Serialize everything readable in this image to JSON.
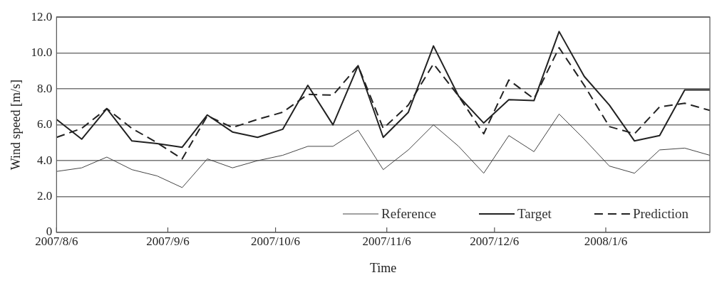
{
  "chart_data": {
    "type": "line",
    "xlabel": "Time",
    "ylabel": "Wind speed [m/s]",
    "x": [
      "2007-08-06",
      "2007-08-13",
      "2007-08-20",
      "2007-08-27",
      "2007-09-03",
      "2007-09-10",
      "2007-09-17",
      "2007-09-24",
      "2007-10-01",
      "2007-10-08",
      "2007-10-15",
      "2007-10-22",
      "2007-10-29",
      "2007-11-05",
      "2007-11-12",
      "2007-11-19",
      "2007-11-26",
      "2007-12-03",
      "2007-12-10",
      "2007-12-17",
      "2007-12-24",
      "2007-12-31",
      "2008-01-07",
      "2008-01-14",
      "2008-01-21",
      "2008-01-28",
      "2008-02-04"
    ],
    "series": [
      {
        "name": "Reference",
        "color": "#444444",
        "line_style": "solid",
        "values": [
          3.4,
          3.6,
          4.2,
          3.5,
          3.15,
          2.5,
          4.1,
          3.6,
          4.0,
          4.3,
          4.8,
          4.8,
          5.7,
          3.5,
          4.6,
          6.0,
          4.8,
          3.3,
          5.4,
          4.5,
          6.6,
          5.2,
          3.7,
          3.3,
          4.6,
          4.7,
          4.3
        ]
      },
      {
        "name": "Target",
        "color": "#222222",
        "line_style": "solid",
        "values": [
          6.3,
          5.2,
          6.9,
          5.1,
          4.95,
          4.75,
          6.55,
          5.6,
          5.3,
          5.75,
          8.2,
          6.0,
          9.3,
          5.3,
          6.7,
          10.4,
          7.6,
          6.1,
          7.4,
          7.35,
          11.2,
          8.7,
          7.1,
          5.1,
          5.4,
          7.95,
          7.95
        ]
      },
      {
        "name": "Prediction",
        "color": "#222222",
        "line_style": "dashed",
        "values": [
          5.3,
          5.8,
          6.9,
          5.8,
          5.0,
          4.1,
          6.5,
          5.85,
          6.3,
          6.7,
          7.7,
          7.65,
          9.3,
          5.8,
          7.1,
          9.4,
          7.6,
          5.5,
          8.5,
          7.45,
          10.3,
          8.2,
          5.9,
          5.5,
          7.0,
          7.2,
          6.8
        ]
      }
    ],
    "xlim": [
      "2007-08-06",
      "2008-02-04"
    ],
    "xticks": [
      {
        "value": "2007-08-06",
        "label": "2007/8/6"
      },
      {
        "value": "2007-09-06",
        "label": "2007/9/6"
      },
      {
        "value": "2007-10-06",
        "label": "2007/10/6"
      },
      {
        "value": "2007-11-06",
        "label": "2007/11/6"
      },
      {
        "value": "2007-12-06",
        "label": "2007/12/6"
      },
      {
        "value": "2008-01-06",
        "label": "2008/1/6"
      }
    ],
    "ylim": [
      0,
      12
    ],
    "yticks": [
      {
        "value": 0,
        "label": "0"
      },
      {
        "value": 2,
        "label": "2.0"
      },
      {
        "value": 4,
        "label": "4.0"
      },
      {
        "value": 6,
        "label": "6.0"
      },
      {
        "value": 8,
        "label": "8.0"
      },
      {
        "value": 10,
        "label": "10.0"
      },
      {
        "value": 12,
        "label": "12.0"
      }
    ],
    "grid": "y",
    "legend": "bottom right",
    "marker": "none"
  }
}
